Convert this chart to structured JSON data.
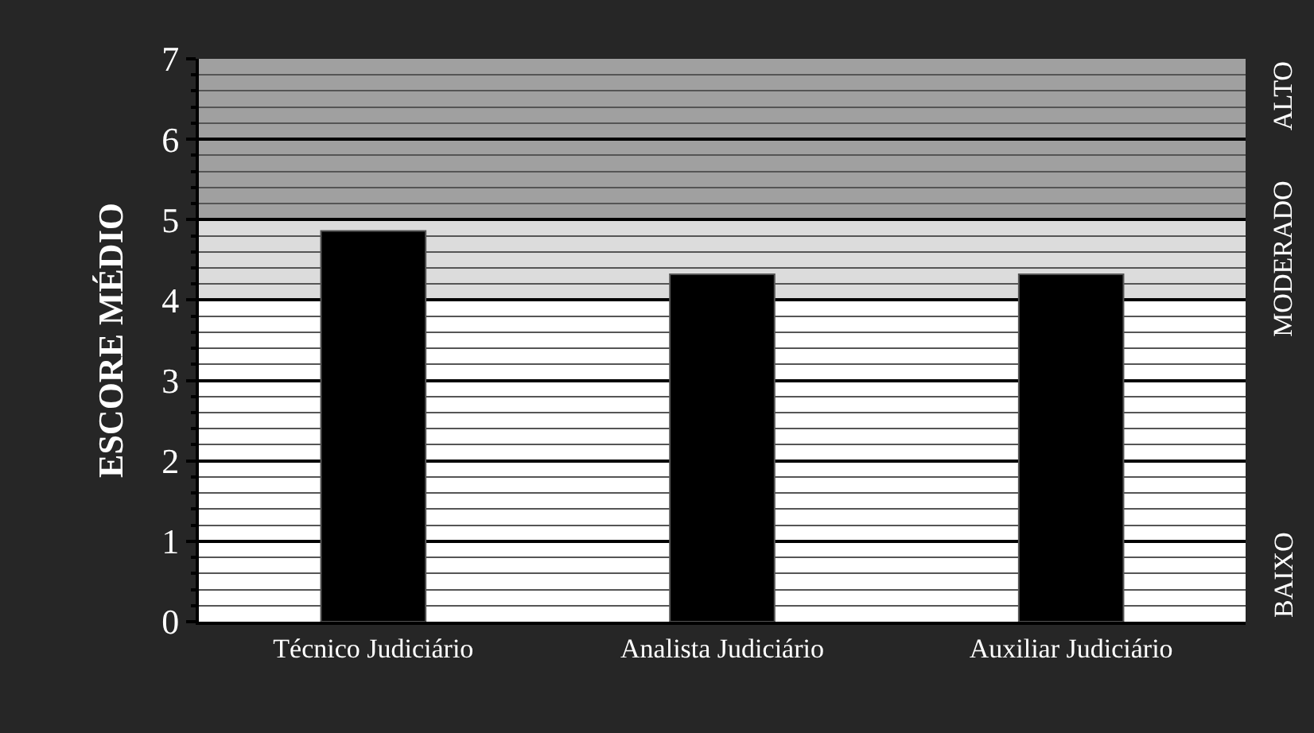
{
  "chart_data": {
    "type": "bar",
    "ylabel": "ESCORE MÉDIO",
    "categories": [
      "Técnico Judiciário",
      "Analista Judiciário",
      "Auxiliar Judiciário"
    ],
    "values": [
      4.86,
      4.32,
      4.32
    ],
    "color": "#000000",
    "ylim": [
      0,
      7
    ],
    "yticks": [
      0,
      1,
      2,
      3,
      4,
      5,
      6,
      7
    ],
    "grid": "y",
    "bands": [
      {
        "axis": "y",
        "from": 0,
        "to": 4,
        "label": "BAIXO",
        "color": "#ffffff"
      },
      {
        "axis": "y",
        "from": 4,
        "to": 5,
        "label": "MODERADO",
        "color": "#dcdcdc"
      },
      {
        "axis": "y",
        "from": 5,
        "to": 7,
        "label": "ALTO",
        "color": "#a0a0a0"
      }
    ]
  }
}
